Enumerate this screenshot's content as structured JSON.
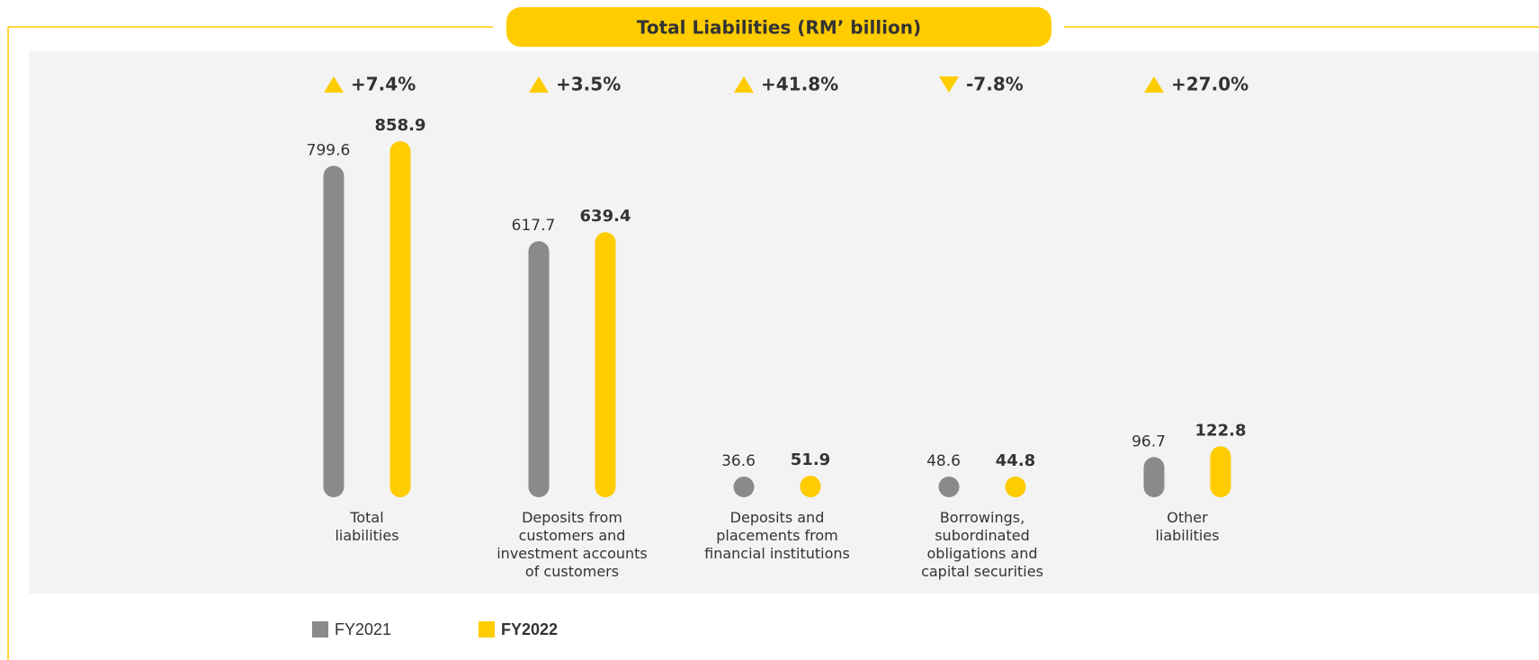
{
  "chart_data": {
    "type": "bar",
    "title": "Total Liabilities (RM’ billion)",
    "categories": [
      "Total liabilities",
      "Deposits from customers and investment accounts of customers",
      "Deposits and placements from financial institutions",
      "Borrowings, subordinated obligations and capital securities",
      "Other liabilities"
    ],
    "series": [
      {
        "name": "FY2021",
        "color": "#8a8a8a",
        "values": [
          799.6,
          617.7,
          36.6,
          48.6,
          96.7
        ]
      },
      {
        "name": "FY2022",
        "color": "#ffcc00",
        "values": [
          858.9,
          639.4,
          51.9,
          44.8,
          122.8
        ]
      }
    ],
    "changes": [
      7.4,
      3.5,
      41.8,
      -7.8,
      27.0
    ],
    "change_labels": [
      "+7.4%",
      "+3.5%",
      "+41.8%",
      "-7.8%",
      "+27.0%"
    ]
  }
}
